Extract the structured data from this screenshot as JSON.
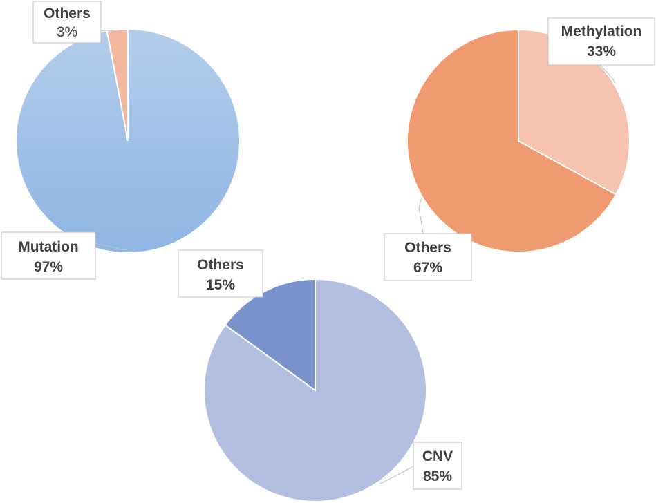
{
  "chart_data": [
    {
      "type": "pie",
      "slices": [
        {
          "label": "Mutation",
          "value": 97,
          "display": "97%",
          "color": "#9dbde6"
        },
        {
          "label": "Others",
          "value": 3,
          "display": "3%",
          "color": "#f4b7a0"
        }
      ]
    },
    {
      "type": "pie",
      "slices": [
        {
          "label": "Methylation",
          "value": 33,
          "display": "33%",
          "color": "#f6c3b1"
        },
        {
          "label": "Others",
          "value": 67,
          "display": "67%",
          "color": "#f09a72"
        }
      ]
    },
    {
      "type": "pie",
      "slices": [
        {
          "label": "CNV",
          "value": 85,
          "display": "85%",
          "color": "#b3bfe0"
        },
        {
          "label": "Others",
          "value": 15,
          "display": "15%",
          "color": "#7a92cc"
        }
      ]
    }
  ]
}
